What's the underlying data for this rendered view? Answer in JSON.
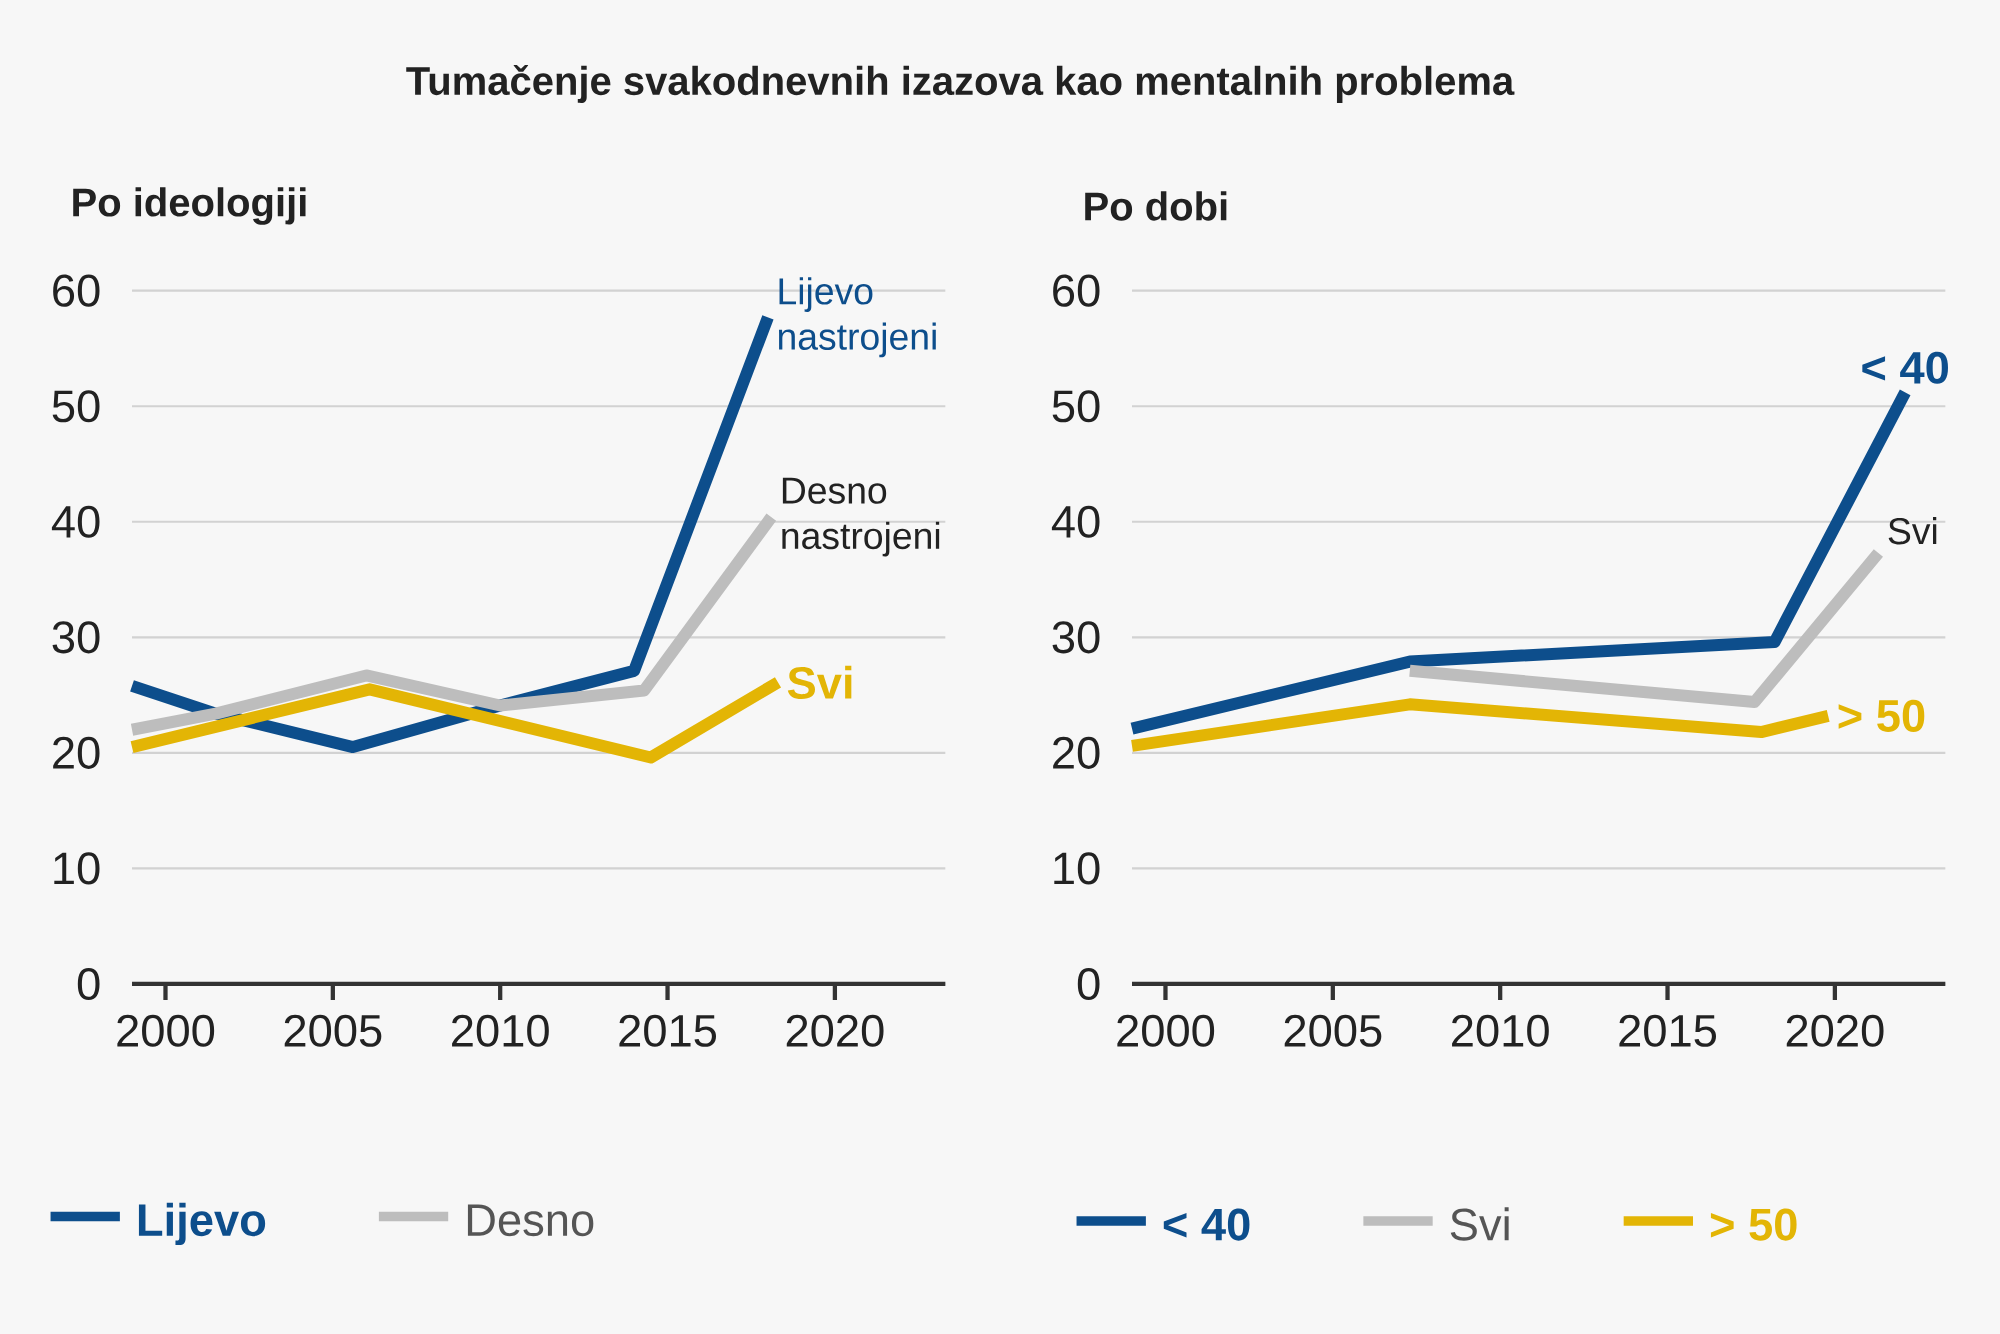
{
  "chart_data": [
    {
      "type": "line",
      "title": "Tumačenje svakodnevnih izazova kao mentalnih problema",
      "subtitle": "Po ideologiji",
      "xlim": [
        1999,
        2023.3
      ],
      "ylim": [
        0,
        60
      ],
      "xticks": [
        2000,
        2005,
        2010,
        2015,
        2020
      ],
      "yticks": [
        0,
        10,
        20,
        30,
        40,
        50,
        60
      ],
      "grid": "y",
      "legend": "bottom",
      "series": [
        {
          "name": "Lijevo",
          "color": "#0d4e8c",
          "x": [
            1999,
            2001.5,
            2005.6,
            2010,
            2014,
            2018
          ],
          "values": [
            25.8,
            23.4,
            20.5,
            24.1,
            27.1,
            57.7
          ]
        },
        {
          "name": "Desno",
          "color": "#bdbdbd",
          "x": [
            1999,
            2001.5,
            2006,
            2010,
            2014.3,
            2018.1
          ],
          "values": [
            22.0,
            23.4,
            26.7,
            24.1,
            25.4,
            40.4
          ]
        },
        {
          "color": "#e3b505",
          "x": [
            1999,
            2006.1,
            2014.5,
            2018.3
          ],
          "values": [
            20.5,
            25.5,
            19.6,
            26.1
          ]
        }
      ],
      "annotations": [
        {
          "text": "Lijevo nastrojeni",
          "x": 2018,
          "y": 57.7
        },
        {
          "text": "Desno nastrojeni",
          "x": 2018.1,
          "y": 40.4
        },
        {
          "text": "Svi",
          "x": 2018.3,
          "y": 26.1
        }
      ]
    },
    {
      "type": "line",
      "subtitle": "Po dobi",
      "xlim": [
        1999,
        2023.3
      ],
      "ylim": [
        0,
        60
      ],
      "xticks": [
        2000,
        2005,
        2010,
        2015,
        2020
      ],
      "yticks": [
        0,
        10,
        20,
        30,
        40,
        50,
        60
      ],
      "grid": "y",
      "legend": "bottom",
      "series": [
        {
          "name": "< 40",
          "color": "#0d4e8c",
          "x": [
            1999,
            2007.3,
            2018.2,
            2022.1
          ],
          "values": [
            22.1,
            27.9,
            29.6,
            51.2
          ]
        },
        {
          "name": "Svi",
          "color": "#bdbdbd",
          "x": [
            2007.3,
            2017.6,
            2021.3
          ],
          "values": [
            27.1,
            24.4,
            37.3
          ]
        },
        {
          "name": "> 50",
          "color": "#e3b505",
          "x": [
            1999,
            2007.3,
            2017.8,
            2019.8
          ],
          "values": [
            20.6,
            24.2,
            21.8,
            23.2
          ]
        }
      ],
      "annotations": [
        {
          "text": "< 40",
          "x": 2022.1,
          "y": 51.2
        },
        {
          "text": "Svi",
          "x": 2021.3,
          "y": 37.3
        },
        {
          "text": "> 50",
          "x": 2019.8,
          "y": 23.2
        }
      ]
    }
  ]
}
